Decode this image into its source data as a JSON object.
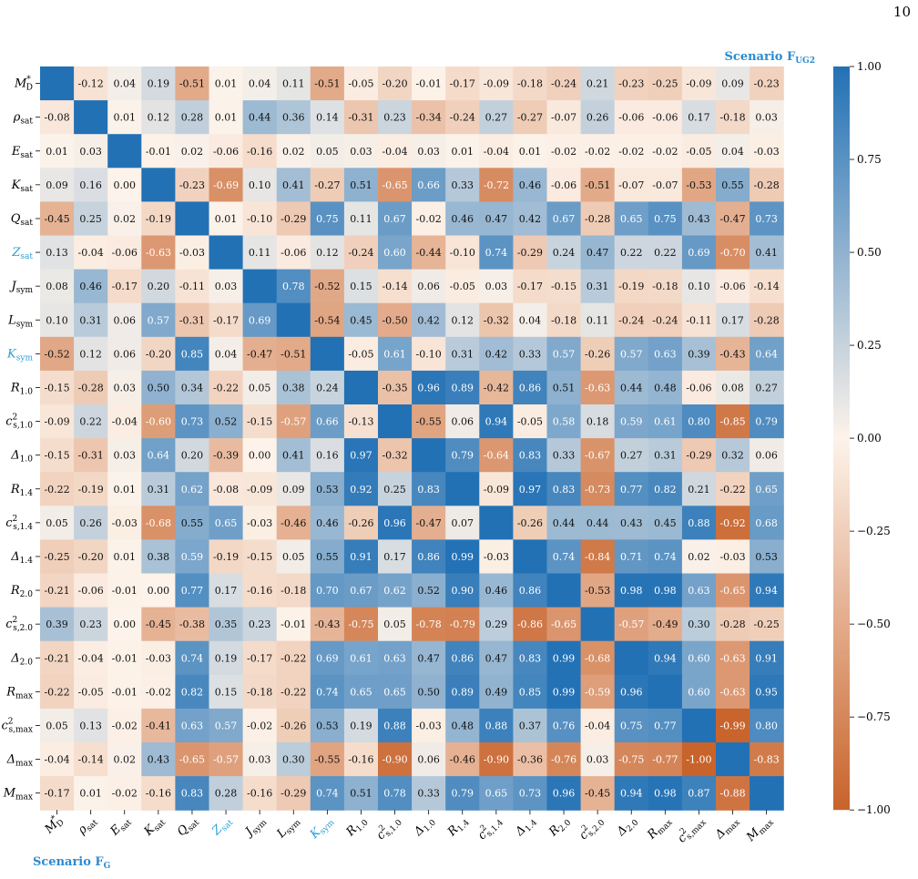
{
  "page_number": "10",
  "chart_data": {
    "type": "heatmap",
    "upper_label": "Scenario F_UG2",
    "lower_label": "Scenario F_G",
    "labels": [
      "M*_D",
      "ρ_sat",
      "E_sat",
      "K_sat",
      "Q_sat",
      "Z_sat",
      "J_sym",
      "L_sym",
      "K_sym",
      "R_1.0",
      "c²_s,1.0",
      "Δ_1.0",
      "R_1.4",
      "c²_s,1.4",
      "Δ_1.4",
      "R_2.0",
      "c²_s,2.0",
      "Δ_2.0",
      "R_max",
      "c²_s,max",
      "Δ_max",
      "M_max"
    ],
    "highlight_labels": [
      "Z_sat",
      "K_sym"
    ],
    "highlight_color": "#2a9fd8",
    "colorbar": {
      "min": -1.0,
      "max": 1.0,
      "ticks": [
        "1.00",
        "0.75",
        "0.50",
        "0.25",
        "0.00",
        "−0.25",
        "−0.50",
        "−0.75",
        "−1.00"
      ]
    },
    "colors": {
      "positive": "#2271b5",
      "neutral": "#fdf3ea",
      "negative": "#c8632b"
    },
    "matrix": [
      [
        null,
        -0.12,
        0.04,
        0.19,
        -0.51,
        0.01,
        0.04,
        0.11,
        -0.51,
        -0.05,
        -0.2,
        -0.01,
        -0.17,
        -0.09,
        -0.18,
        -0.24,
        0.21,
        -0.23,
        -0.25,
        -0.09,
        0.09,
        -0.23
      ],
      [
        -0.08,
        null,
        0.01,
        0.12,
        0.28,
        0.01,
        0.44,
        0.36,
        0.14,
        -0.31,
        0.23,
        -0.34,
        -0.24,
        0.27,
        -0.27,
        -0.07,
        0.26,
        -0.06,
        -0.06,
        0.17,
        -0.18,
        0.03
      ],
      [
        0.01,
        0.03,
        null,
        -0.01,
        0.02,
        -0.06,
        -0.16,
        0.02,
        0.05,
        0.03,
        -0.04,
        0.03,
        0.01,
        -0.04,
        0.01,
        -0.02,
        -0.02,
        -0.02,
        -0.02,
        -0.05,
        0.04,
        -0.03
      ],
      [
        0.09,
        0.16,
        -0.0,
        null,
        -0.23,
        -0.69,
        0.1,
        0.41,
        -0.27,
        0.51,
        -0.65,
        0.66,
        0.33,
        -0.72,
        0.46,
        -0.06,
        -0.51,
        -0.07,
        -0.07,
        -0.53,
        0.55,
        -0.28
      ],
      [
        -0.45,
        0.25,
        0.02,
        -0.19,
        null,
        0.01,
        -0.1,
        -0.29,
        0.75,
        0.11,
        0.67,
        -0.02,
        0.46,
        0.47,
        0.42,
        0.67,
        -0.28,
        0.65,
        0.75,
        0.43,
        -0.47,
        0.73
      ],
      [
        0.13,
        -0.04,
        -0.06,
        -0.63,
        -0.03,
        null,
        0.11,
        -0.06,
        0.12,
        -0.24,
        0.6,
        -0.44,
        -0.1,
        0.74,
        -0.29,
        0.24,
        0.47,
        0.22,
        0.22,
        0.69,
        -0.7,
        0.41
      ],
      [
        0.08,
        0.46,
        -0.17,
        0.2,
        -0.11,
        0.03,
        null,
        0.78,
        -0.52,
        0.15,
        -0.14,
        0.06,
        -0.05,
        0.03,
        -0.17,
        -0.15,
        0.31,
        -0.19,
        -0.18,
        0.1,
        -0.06,
        -0.14
      ],
      [
        0.1,
        0.31,
        0.06,
        0.57,
        -0.31,
        -0.17,
        0.69,
        null,
        -0.54,
        0.45,
        -0.5,
        0.42,
        0.12,
        -0.32,
        0.04,
        -0.18,
        0.11,
        -0.24,
        -0.24,
        -0.11,
        0.17,
        -0.28
      ],
      [
        -0.52,
        0.12,
        0.06,
        -0.2,
        0.85,
        0.04,
        -0.47,
        -0.51,
        null,
        -0.05,
        0.61,
        -0.1,
        0.31,
        0.42,
        0.33,
        0.57,
        -0.26,
        0.57,
        0.63,
        0.39,
        -0.43,
        0.64
      ],
      [
        -0.15,
        -0.28,
        0.03,
        0.5,
        0.34,
        -0.22,
        0.05,
        0.38,
        0.24,
        null,
        -0.35,
        0.96,
        0.89,
        -0.42,
        0.86,
        0.51,
        -0.63,
        0.44,
        0.48,
        -0.06,
        0.08,
        0.27
      ],
      [
        -0.09,
        0.22,
        -0.04,
        -0.6,
        0.73,
        0.52,
        -0.15,
        -0.57,
        0.66,
        -0.13,
        null,
        -0.55,
        0.06,
        0.94,
        -0.05,
        0.58,
        0.18,
        0.59,
        0.61,
        0.8,
        -0.85,
        0.79
      ],
      [
        -0.15,
        -0.31,
        0.03,
        0.64,
        0.2,
        -0.39,
        -0.0,
        0.41,
        0.16,
        0.97,
        -0.32,
        null,
        0.79,
        -0.64,
        0.83,
        0.33,
        -0.67,
        0.27,
        0.31,
        -0.29,
        0.32,
        0.06
      ],
      [
        -0.22,
        -0.19,
        0.01,
        0.31,
        0.62,
        -0.08,
        -0.09,
        0.09,
        0.53,
        0.92,
        0.25,
        0.83,
        null,
        -0.09,
        0.97,
        0.83,
        -0.73,
        0.77,
        0.82,
        0.21,
        -0.22,
        0.65
      ],
      [
        0.05,
        0.26,
        -0.03,
        -0.68,
        0.55,
        0.65,
        -0.03,
        -0.46,
        0.46,
        -0.26,
        0.96,
        -0.47,
        0.07,
        null,
        -0.26,
        0.44,
        0.44,
        0.43,
        0.45,
        0.88,
        -0.92,
        0.68
      ],
      [
        -0.25,
        -0.2,
        0.01,
        0.38,
        0.59,
        -0.19,
        -0.15,
        0.05,
        0.55,
        0.91,
        0.17,
        0.86,
        0.99,
        -0.03,
        null,
        0.74,
        -0.84,
        0.71,
        0.74,
        0.02,
        -0.03,
        0.53
      ],
      [
        -0.21,
        -0.06,
        -0.01,
        0.0,
        0.77,
        0.17,
        -0.16,
        -0.18,
        0.7,
        0.67,
        0.62,
        0.52,
        0.9,
        0.46,
        0.86,
        null,
        -0.53,
        0.98,
        0.98,
        0.63,
        -0.65,
        0.94
      ],
      [
        0.39,
        0.23,
        -0.0,
        -0.45,
        -0.38,
        0.35,
        0.23,
        -0.01,
        -0.43,
        -0.75,
        0.05,
        -0.78,
        -0.79,
        0.29,
        -0.86,
        -0.65,
        null,
        -0.57,
        -0.49,
        0.3,
        -0.28,
        -0.25
      ],
      [
        -0.21,
        -0.04,
        -0.01,
        -0.03,
        0.74,
        0.19,
        -0.17,
        -0.22,
        0.69,
        0.61,
        0.63,
        0.47,
        0.86,
        0.47,
        0.83,
        0.99,
        -0.68,
        null,
        0.94,
        0.6,
        -0.63,
        0.91
      ],
      [
        -0.22,
        -0.05,
        -0.01,
        -0.02,
        0.82,
        0.15,
        -0.18,
        -0.22,
        0.74,
        0.65,
        0.65,
        0.5,
        0.89,
        0.49,
        0.85,
        0.99,
        -0.59,
        0.96,
        null,
        0.6,
        -0.63,
        0.95
      ],
      [
        0.05,
        0.13,
        -0.02,
        -0.41,
        0.63,
        0.57,
        -0.02,
        -0.26,
        0.53,
        0.19,
        0.88,
        -0.03,
        0.48,
        0.88,
        0.37,
        0.76,
        -0.04,
        0.75,
        0.77,
        null,
        -0.99,
        0.8
      ],
      [
        -0.04,
        -0.14,
        0.02,
        0.43,
        -0.65,
        -0.57,
        0.03,
        0.3,
        -0.55,
        -0.16,
        -0.9,
        0.06,
        -0.46,
        -0.9,
        -0.36,
        -0.76,
        0.03,
        -0.75,
        -0.77,
        -1.0,
        null,
        -0.83
      ],
      [
        -0.17,
        0.01,
        -0.02,
        -0.16,
        0.83,
        0.28,
        -0.16,
        -0.29,
        0.74,
        0.51,
        0.78,
        0.33,
        0.79,
        0.65,
        0.73,
        0.96,
        -0.45,
        0.94,
        0.98,
        0.87,
        -0.88,
        null
      ]
    ]
  }
}
